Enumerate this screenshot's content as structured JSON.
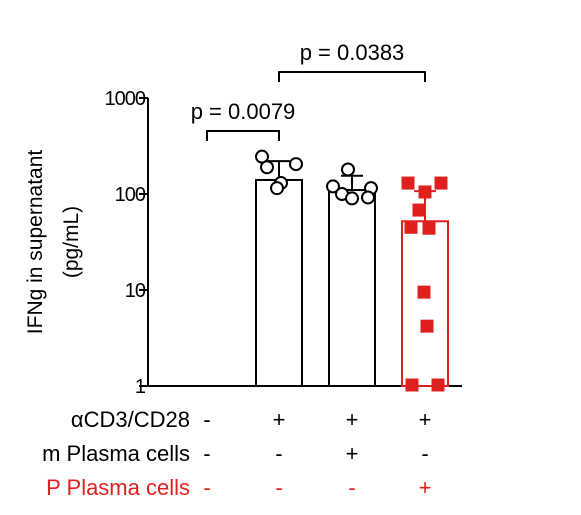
{
  "chart_data": {
    "type": "bar",
    "ylabel_line1": "IFNg in supernatant",
    "ylabel_line2": "(pg/mL)",
    "yscale": "log",
    "ylim": [
      1,
      1000
    ],
    "yticks": [
      {
        "value": 1,
        "label": "1"
      },
      {
        "value": 10,
        "label": "10"
      },
      {
        "value": 100,
        "label": "100"
      },
      {
        "value": 1000,
        "label": "1000"
      }
    ],
    "bars": [
      {
        "value": null,
        "error": null,
        "color": "#000000",
        "points": [],
        "marker": "circle"
      },
      {
        "value": 140,
        "error": 80,
        "color": "#000000",
        "points": [
          245,
          205,
          190,
          130,
          115
        ],
        "marker": "circle"
      },
      {
        "value": 110,
        "error": 45,
        "color": "#000000",
        "points": [
          180,
          120,
          115,
          100,
          90,
          92
        ],
        "marker": "circle"
      },
      {
        "value": 52,
        "error": 55,
        "color": "#e0201f",
        "points": [
          130,
          130,
          105,
          68,
          45,
          44,
          9.5,
          4.2,
          1,
          1
        ],
        "marker": "square"
      }
    ],
    "comparisons": [
      {
        "from": 0,
        "to": 1,
        "label": "p = 0.0079"
      },
      {
        "from": 1,
        "to": 3,
        "label": "p = 0.0383"
      }
    ],
    "condition_rows": [
      {
        "label": "αCD3/CD28",
        "color": "#000000",
        "values": [
          "-",
          "+",
          "+",
          "+"
        ]
      },
      {
        "label": "m Plasma cells",
        "color": "#000000",
        "values": [
          "-",
          "-",
          "+",
          "-"
        ]
      },
      {
        "label": "P Plasma cells",
        "color": "#e0201f",
        "values": [
          "-",
          "-",
          "-",
          "+"
        ]
      }
    ]
  }
}
